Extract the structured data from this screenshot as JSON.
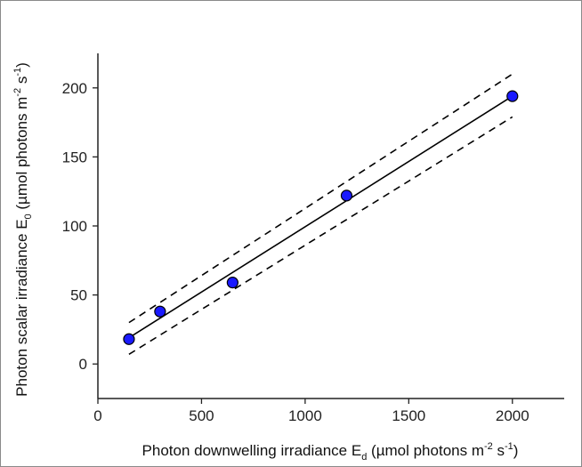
{
  "chart_data": {
    "type": "scatter",
    "xlabel_parts": {
      "main": "Photon downwelling irradiance E",
      "sub": "d",
      "unit_open": " (µmol photons m",
      "exp1": "-2",
      "mid": " s",
      "exp2": "-1",
      "close": ")"
    },
    "ylabel_parts": {
      "main": "Photon scalar irradiance E",
      "sub": "0",
      "unit_open": " (µmol photons m",
      "exp1": "-2",
      "mid": " s",
      "exp2": "-1",
      "close": ")"
    },
    "xlim": [
      0,
      2250
    ],
    "ylim": [
      -25,
      225
    ],
    "xticks": [
      0,
      500,
      1000,
      1500,
      2000
    ],
    "yticks": [
      0,
      50,
      100,
      150,
      200
    ],
    "points": [
      {
        "x": 150,
        "y": 18
      },
      {
        "x": 300,
        "y": 38
      },
      {
        "x": 650,
        "y": 59
      },
      {
        "x": 1200,
        "y": 122
      },
      {
        "x": 2000,
        "y": 194
      }
    ],
    "fit_line": {
      "x": [
        150,
        2000
      ],
      "y": [
        19,
        194
      ]
    },
    "confidence_upper": {
      "x": [
        150,
        2000
      ],
      "y": [
        30,
        210
      ]
    },
    "confidence_lower": {
      "x": [
        150,
        2000
      ],
      "y": [
        7,
        179
      ]
    },
    "grid": false,
    "marker_color": "#1a1aff",
    "line_color": "#000000"
  }
}
